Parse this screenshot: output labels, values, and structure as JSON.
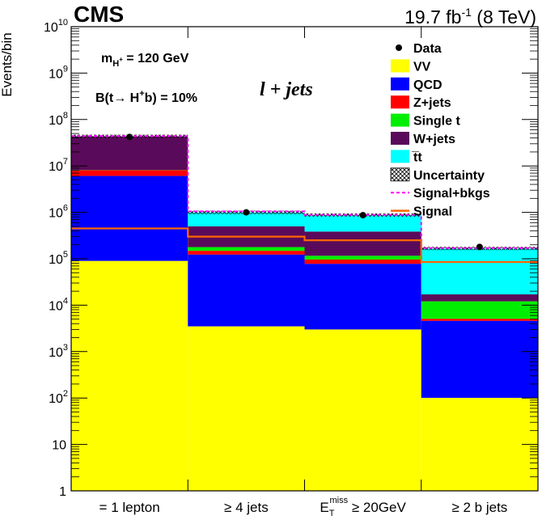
{
  "chart_data": {
    "type": "bar",
    "stacked": true,
    "experiment_label": "CMS",
    "luminosity_label": {
      "value": "19.7 fb",
      "sup": "-1",
      "energy": " (8 TeV)"
    },
    "ylabel": "Events/bin",
    "yscale": "log",
    "ylim": [
      1,
      60000000000
    ],
    "yticks": [
      "1",
      "10",
      "10",
      "10",
      "10",
      "10",
      "10",
      "10",
      "10",
      "10",
      "10"
    ],
    "ytick_exponents": [
      "",
      "",
      "2",
      "3",
      "4",
      "5",
      "6",
      "7",
      "8",
      "9",
      "10"
    ],
    "categories": [
      "= 1 lepton",
      "≥ 4 jets",
      "≥ 20GeV",
      "≥ 2 b jets"
    ],
    "category3_symbol": {
      "base": "E",
      "sub": "T",
      "sup": "miss"
    },
    "annotations": {
      "mass": {
        "prefix": "m",
        "sub": "H",
        "subsup": "+",
        "suffix": " = 120 GeV"
      },
      "branching": {
        "prefix": "B(t→ H",
        "sup": "+",
        "suffix": "b) = 10%"
      },
      "channel": "l + jets"
    },
    "legend": {
      "position": "top-right",
      "entries": [
        {
          "label": "Data",
          "kind": "marker"
        },
        {
          "label": "VV",
          "kind": "fill",
          "color": "#ffff00"
        },
        {
          "label": "QCD",
          "kind": "fill",
          "color": "#0000ff"
        },
        {
          "label": "Z+jets",
          "kind": "fill",
          "color": "#ff0000"
        },
        {
          "label": "Single t",
          "kind": "fill",
          "color": "#00ee00"
        },
        {
          "label": "W+jets",
          "kind": "fill",
          "color": "#5a0a5a"
        },
        {
          "label": "t̅t",
          "kind": "fill",
          "color": "#00ffff"
        },
        {
          "label": "Uncertainty",
          "kind": "hatch"
        },
        {
          "label": "Signal+bkgs",
          "kind": "dashline",
          "color": "#ff00ff"
        },
        {
          "label": "Signal",
          "kind": "line",
          "color": "#ff6600"
        }
      ]
    },
    "series": [
      {
        "name": "VV",
        "color": "#ffff00",
        "values": [
          90000,
          3500,
          3000,
          100
        ]
      },
      {
        "name": "QCD",
        "color": "#0000ff",
        "values": [
          6000000,
          120000,
          75000,
          4500
        ]
      },
      {
        "name": "Z+jets",
        "color": "#ff0000",
        "values": [
          2000000,
          25000,
          18000,
          500
        ]
      },
      {
        "name": "Single t",
        "color": "#00ee00",
        "values": [
          100000,
          30000,
          20000,
          7000
        ]
      },
      {
        "name": "W+jets",
        "color": "#5a0a5a",
        "values": [
          35000000,
          320000,
          270000,
          5000
        ]
      },
      {
        "name": "t̅t",
        "color": "#00ffff",
        "values": [
          300000,
          500000,
          490000,
          150000
        ]
      }
    ],
    "data": {
      "name": "Data",
      "values": [
        42000000,
        1000000,
        870000,
        180000
      ]
    },
    "signal": {
      "name": "Signal",
      "color": "#ff6600",
      "values": [
        450000,
        300000,
        250000,
        85000
      ]
    },
    "signal_plus_bkgs": {
      "name": "Signal+bkgs",
      "color": "#ff00ff",
      "values": [
        44000000,
        1050000,
        880000,
        170000
      ]
    }
  }
}
